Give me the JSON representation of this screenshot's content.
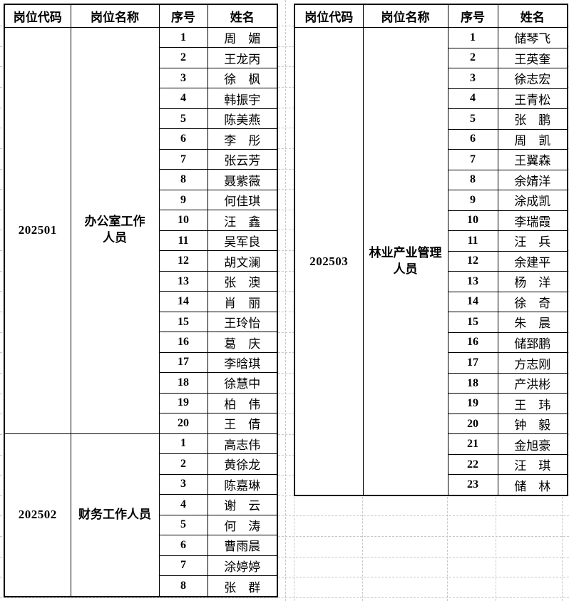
{
  "columns": [
    "岗位代码",
    "岗位名称",
    "序号",
    "姓名"
  ],
  "colors": {
    "border": "#000000",
    "gridline": "#c8c8c8",
    "background": "#ffffff",
    "text": "#000000"
  },
  "tables": [
    {
      "id": "left",
      "groups": [
        {
          "code": "202501",
          "title": "办公室工作\n人员",
          "rows": [
            {
              "no": "1",
              "name": "周　媚"
            },
            {
              "no": "2",
              "name": "王龙丙"
            },
            {
              "no": "3",
              "name": "徐　枫"
            },
            {
              "no": "4",
              "name": "韩振宇"
            },
            {
              "no": "5",
              "name": "陈美燕"
            },
            {
              "no": "6",
              "name": "李　彤"
            },
            {
              "no": "7",
              "name": "张云芳"
            },
            {
              "no": "8",
              "name": "聂紫薇"
            },
            {
              "no": "9",
              "name": "何佳琪"
            },
            {
              "no": "10",
              "name": "汪　鑫"
            },
            {
              "no": "11",
              "name": "吴军良"
            },
            {
              "no": "12",
              "name": "胡文澜"
            },
            {
              "no": "13",
              "name": "张　澳"
            },
            {
              "no": "14",
              "name": "肖　丽"
            },
            {
              "no": "15",
              "name": "王玲怡"
            },
            {
              "no": "16",
              "name": "葛　庆"
            },
            {
              "no": "17",
              "name": "李晗琪"
            },
            {
              "no": "18",
              "name": "徐慧中"
            },
            {
              "no": "19",
              "name": "柏　伟"
            },
            {
              "no": "20",
              "name": "王　倩"
            }
          ]
        },
        {
          "code": "202502",
          "title": "财务工作人员",
          "rows": [
            {
              "no": "1",
              "name": "高志伟"
            },
            {
              "no": "2",
              "name": "黄徐龙"
            },
            {
              "no": "3",
              "name": "陈嘉琳"
            },
            {
              "no": "4",
              "name": "谢　云"
            },
            {
              "no": "5",
              "name": "何　涛"
            },
            {
              "no": "6",
              "name": "曹雨晨"
            },
            {
              "no": "7",
              "name": "涂婷婷"
            },
            {
              "no": "8",
              "name": "张　群"
            }
          ]
        }
      ]
    },
    {
      "id": "right",
      "groups": [
        {
          "code": "202503",
          "title": "林业产业管理\n人员",
          "rows": [
            {
              "no": "1",
              "name": "储琴飞"
            },
            {
              "no": "2",
              "name": "王英奎"
            },
            {
              "no": "3",
              "name": "徐志宏"
            },
            {
              "no": "4",
              "name": "王青松"
            },
            {
              "no": "5",
              "name": "张　鹏"
            },
            {
              "no": "6",
              "name": "周　凯"
            },
            {
              "no": "7",
              "name": "王翼森"
            },
            {
              "no": "8",
              "name": "余婧洋"
            },
            {
              "no": "9",
              "name": "涂成凯"
            },
            {
              "no": "10",
              "name": "李瑞霞"
            },
            {
              "no": "11",
              "name": "汪　兵"
            },
            {
              "no": "12",
              "name": "余建平"
            },
            {
              "no": "13",
              "name": "杨　洋"
            },
            {
              "no": "14",
              "name": "徐　奇"
            },
            {
              "no": "15",
              "name": "朱　晨"
            },
            {
              "no": "16",
              "name": "储郅鹏"
            },
            {
              "no": "17",
              "name": "方志刚"
            },
            {
              "no": "18",
              "name": "产洪彬"
            },
            {
              "no": "19",
              "name": "王　玮"
            },
            {
              "no": "20",
              "name": "钟　毅"
            },
            {
              "no": "21",
              "name": "金旭豪"
            },
            {
              "no": "22",
              "name": "汪　琪"
            },
            {
              "no": "23",
              "name": "储　林"
            }
          ]
        }
      ]
    }
  ]
}
